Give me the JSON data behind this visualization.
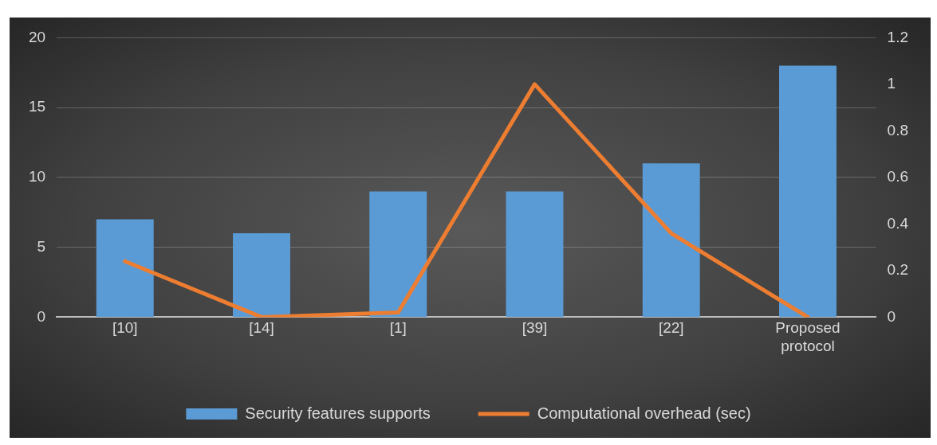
{
  "chart_data": {
    "type": "bar",
    "categories": [
      "[10]",
      "[14]",
      "[1]",
      "[39]",
      "[22]",
      "Proposed protocol"
    ],
    "series": [
      {
        "name": "Security features supports",
        "color": "#5b9bd5",
        "values": [
          7,
          6,
          9,
          9,
          11,
          18
        ]
      },
      {
        "name": "Computational overhead (sec)",
        "type": "line",
        "axis": "y2",
        "color": "#ed7d31",
        "marker": "none",
        "values": [
          0.24,
          0,
          0.02,
          1.0,
          0.36,
          0
        ]
      }
    ],
    "ylim": [
      0,
      20
    ],
    "yticks": [
      0,
      5,
      10,
      15,
      20
    ],
    "y2lim": [
      0,
      1.2
    ],
    "y2ticks": [
      0,
      0.2,
      0.4,
      0.6,
      0.8,
      1,
      1.2
    ],
    "grid": "y",
    "legend": "bottom"
  }
}
